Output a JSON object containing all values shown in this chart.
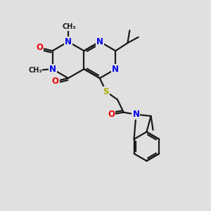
{
  "background_color": "#e0e0e0",
  "bond_color": "#1a1a1a",
  "N_color": "#0000ee",
  "O_color": "#ee0000",
  "S_color": "#aaaa00",
  "line_width": 1.6,
  "font_size": 8.5,
  "figsize": [
    3.0,
    3.0
  ],
  "dpi": 100,
  "xlim": [
    0,
    10
  ],
  "ylim": [
    0,
    10
  ]
}
